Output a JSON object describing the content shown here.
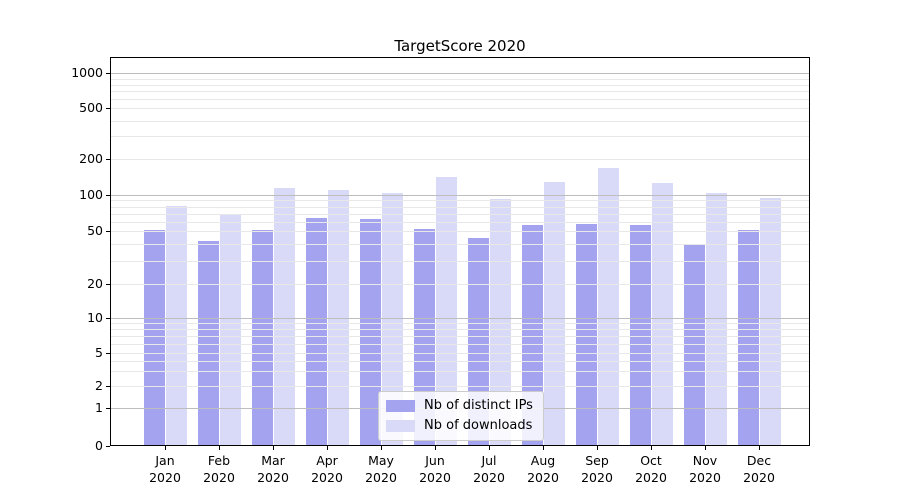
{
  "title": "TargetScore 2020",
  "colors": {
    "ips_bar": "#a3a3f0",
    "downloads_bar": "#d9d9f8",
    "grid_major": "#bdbdbd",
    "grid_minor": "#e8e8e8",
    "spine": "#000000",
    "legend_border": "#cccccc"
  },
  "chart_data": {
    "type": "bar",
    "title": "TargetScore 2020",
    "categories": [
      "Jan",
      "Feb",
      "Mar",
      "Apr",
      "May",
      "Jun",
      "Jul",
      "Aug",
      "Sep",
      "Oct",
      "Nov",
      "Dec"
    ],
    "category_year": "2020",
    "series": [
      {
        "name": "Nb of distinct IPs",
        "color": "#a3a3f0",
        "values": [
          51,
          42,
          51,
          64,
          63,
          52,
          44,
          56,
          57,
          56,
          39,
          51
        ]
      },
      {
        "name": "Nb of downloads",
        "color": "#d9d9f8",
        "values": [
          81,
          69,
          114,
          111,
          104,
          142,
          92,
          127,
          166,
          126,
          103,
          94
        ]
      }
    ],
    "xlabel": "",
    "ylabel": "",
    "yscale": "symlog",
    "yticks": [
      0,
      1,
      2,
      5,
      10,
      20,
      50,
      100,
      200,
      500,
      1000
    ],
    "minor_gridlines": [
      3,
      4,
      6,
      7,
      8,
      9,
      30,
      40,
      60,
      70,
      80,
      90,
      300,
      400,
      600,
      700,
      800,
      900
    ],
    "major_gridlines": [
      1,
      10,
      100,
      1000
    ],
    "ylim": [
      0,
      1350
    ],
    "grid": true,
    "legend_position": "lower center"
  }
}
